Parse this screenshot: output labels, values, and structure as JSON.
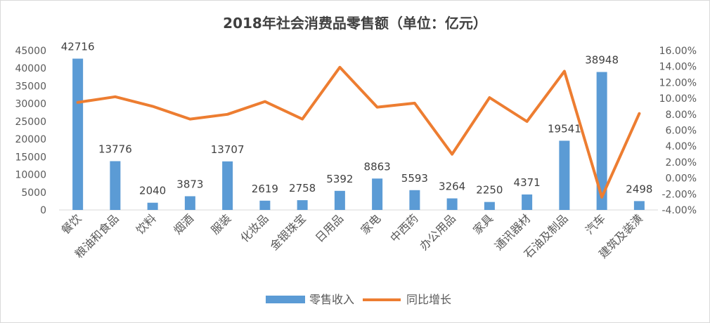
{
  "chart_data": {
    "type": "bar",
    "title": "2018年社会消费品零售额（单位：亿元）",
    "categories": [
      "餐饮",
      "粮油和食品",
      "饮料",
      "烟酒",
      "服装",
      "化妆品",
      "金银珠宝",
      "日用品",
      "家电",
      "中西药",
      "办公用品",
      "家具",
      "通讯器材",
      "石油及制品",
      "汽车",
      "建筑及装潢"
    ],
    "series": [
      {
        "name": "零售收入",
        "type": "bar",
        "axis": "left",
        "color": "#5B9BD5",
        "values": [
          42716,
          13776,
          2040,
          3873,
          13707,
          2619,
          2758,
          5392,
          8863,
          5593,
          3264,
          2250,
          4371,
          19541,
          38948,
          2498
        ]
      },
      {
        "name": "同比增长",
        "type": "line",
        "axis": "right",
        "color": "#ED7D31",
        "values": [
          9.5,
          10.2,
          9.0,
          7.4,
          8.0,
          9.6,
          7.4,
          13.9,
          8.9,
          9.4,
          3.0,
          10.1,
          7.1,
          13.4,
          -2.4,
          8.1
        ]
      }
    ],
    "y_left": {
      "min": 0,
      "max": 45000,
      "ticks": [
        "0",
        "5000",
        "10000",
        "15000",
        "20000",
        "25000",
        "30000",
        "35000",
        "40000",
        "45000"
      ]
    },
    "y_right": {
      "min": -4,
      "max": 16,
      "ticks": [
        "-4.00%",
        "-2.00%",
        "0.00%",
        "2.00%",
        "4.00%",
        "6.00%",
        "8.00%",
        "10.00%",
        "12.00%",
        "14.00%",
        "16.00%"
      ]
    },
    "data_labels": [
      "42716",
      "13776",
      "2040",
      "3873",
      "13707",
      "2619",
      "2758",
      "5392",
      "8863",
      "5593",
      "3264",
      "2250",
      "4371",
      "19541",
      "38948",
      "2498"
    ],
    "grid": false,
    "legend_position": "bottom"
  }
}
